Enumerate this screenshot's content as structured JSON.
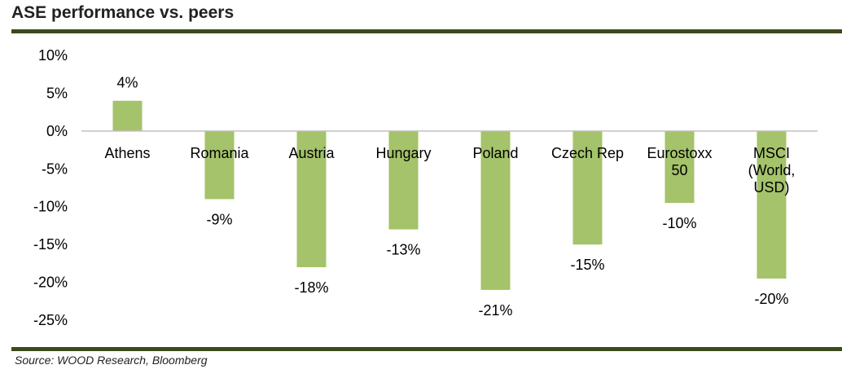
{
  "header": {
    "title": "ASE performance vs. peers"
  },
  "footer": {
    "source": "Source: WOOD Research, Bloomberg"
  },
  "colors": {
    "bar": "#a4c36a",
    "axis": "#bfbfbf",
    "rule": "#3b4a1c"
  },
  "chart_data": {
    "type": "bar",
    "title": "ASE performance vs. peers",
    "xlabel": "",
    "ylabel": "",
    "ylim": [
      -25,
      10
    ],
    "yticks": [
      10,
      5,
      0,
      -5,
      -10,
      -15,
      -20,
      -25
    ],
    "ytick_labels": [
      "10%",
      "5%",
      "0%",
      "-5%",
      "-10%",
      "-15%",
      "-20%",
      "-25%"
    ],
    "categories": [
      [
        "Athens"
      ],
      [
        "Romania"
      ],
      [
        "Austria"
      ],
      [
        "Hungary"
      ],
      [
        "Poland"
      ],
      [
        "Czech Rep"
      ],
      [
        "Eurostoxx",
        "50"
      ],
      [
        "MSCI",
        "(World,",
        "USD)"
      ]
    ],
    "values": [
      4,
      -9,
      -18,
      -13,
      -21,
      -15,
      -9.5,
      -19.5
    ],
    "data_labels": [
      "4%",
      "-9%",
      "-18%",
      "-13%",
      "-21%",
      "-15%",
      "-10%",
      "-20%"
    ],
    "grid": false,
    "legend": "none"
  }
}
